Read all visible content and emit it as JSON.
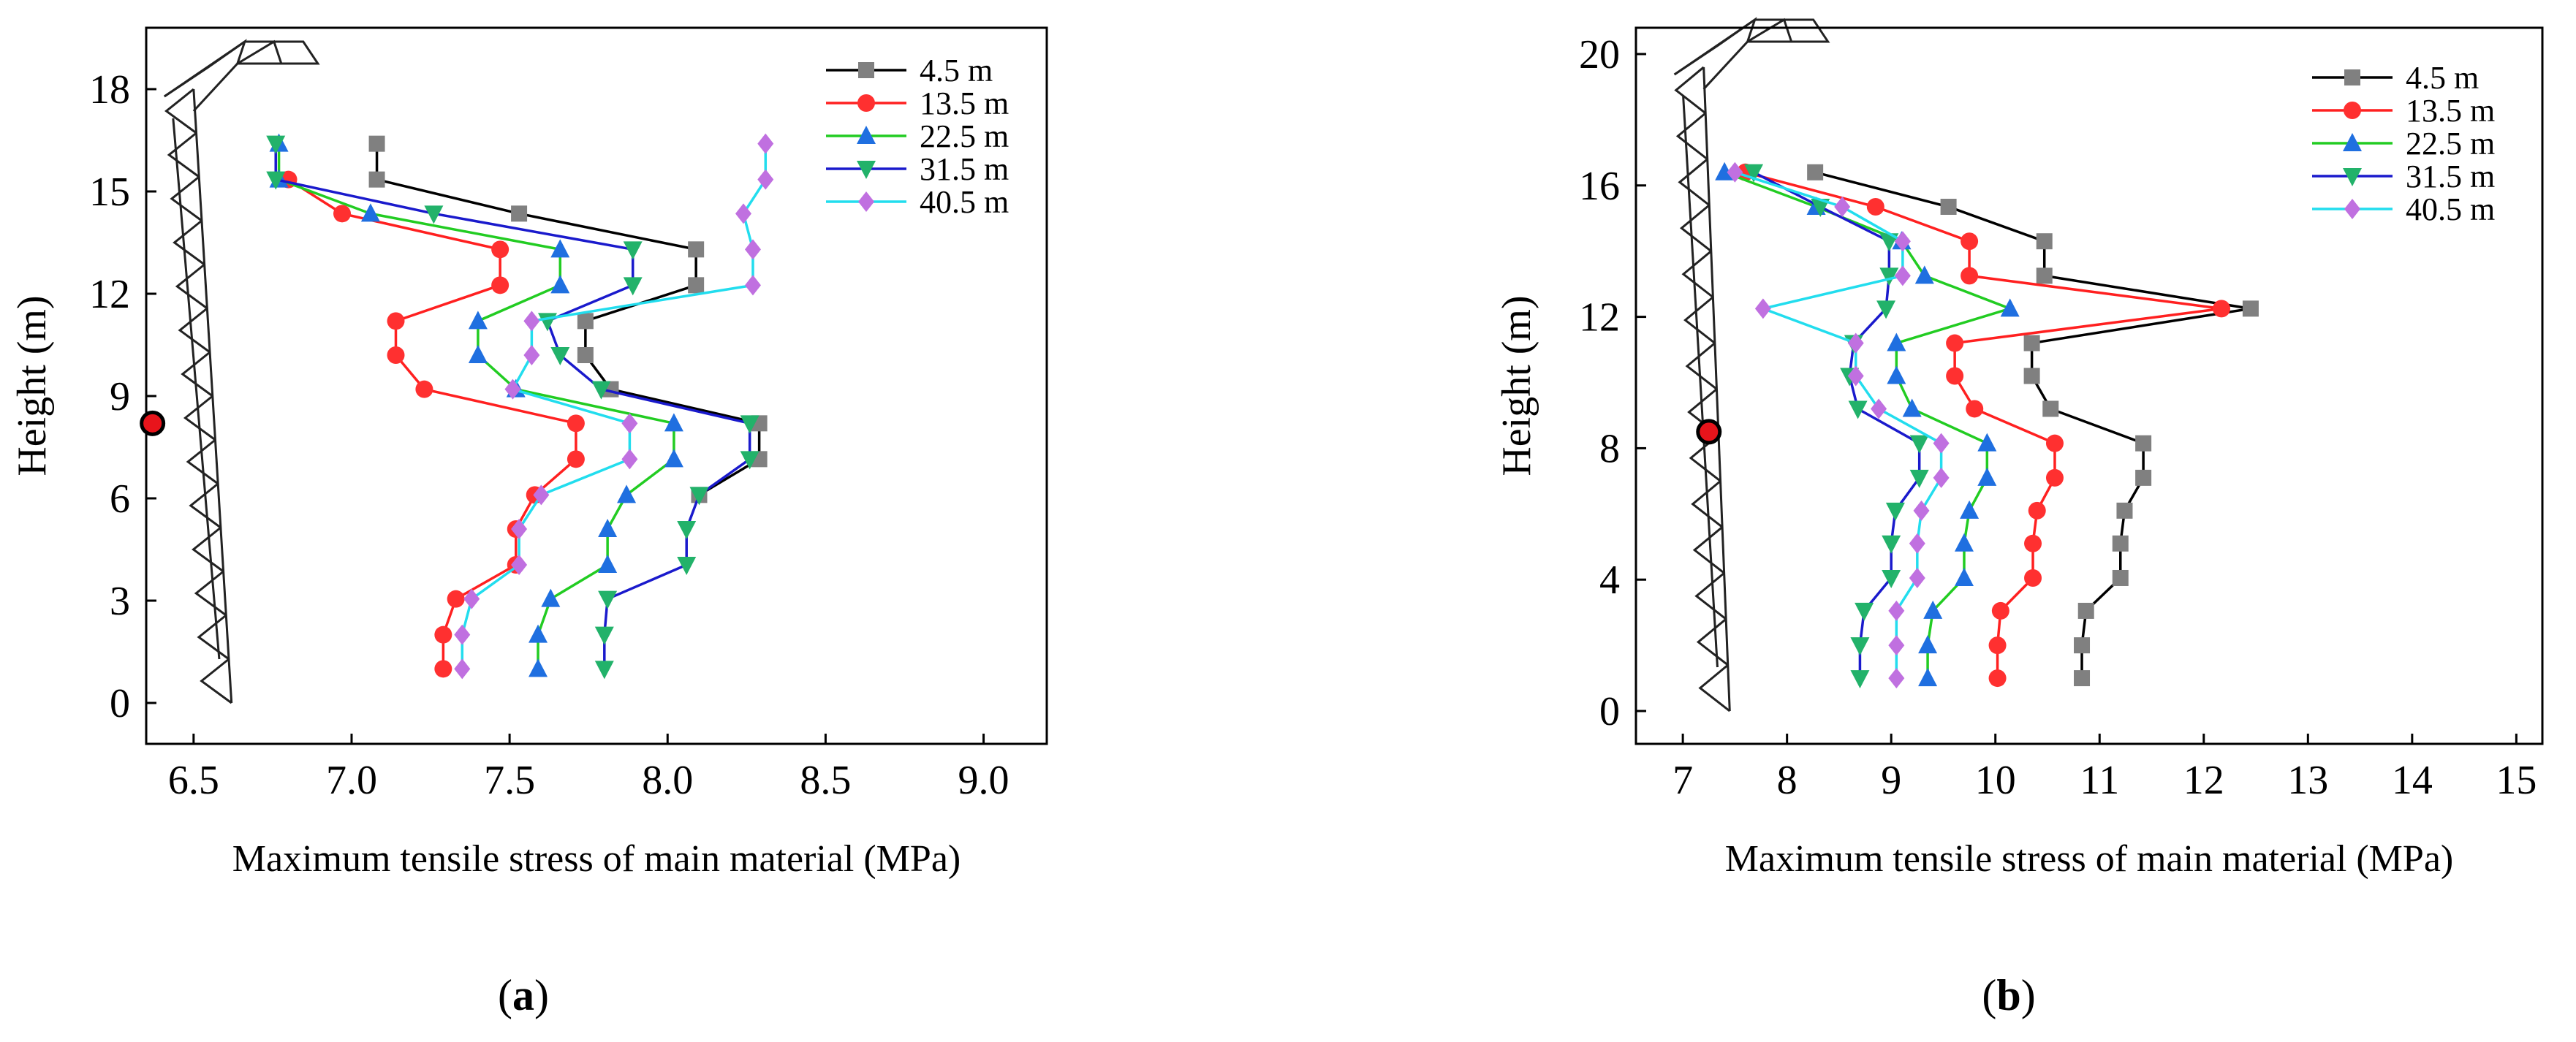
{
  "chart_data": [
    {
      "panel_label": "(a)",
      "type": "line",
      "xlabel": "Maximum tensile stress of main material (MPa)",
      "ylabel": "Height (m)",
      "xlim": [
        6.35,
        9.2
      ],
      "ylim": [
        -1.2,
        19.8
      ],
      "xticks": [
        "6.5",
        "7.0",
        "7.5",
        "8.0",
        "8.5",
        "9.0"
      ],
      "yticks": [
        "0",
        "3",
        "6",
        "9",
        "12",
        "15",
        "18"
      ],
      "tower": {
        "x_base": 6.62,
        "x_top": 6.5,
        "height": 18.0
      },
      "marker_point": {
        "x": 6.37,
        "y": 8.2
      },
      "series": [
        {
          "name": "4.5 m",
          "color": "#000000",
          "marker": "square",
          "marker_color": "#808080",
          "points": [
            [
              7.08,
              16.4
            ],
            [
              7.08,
              15.35
            ],
            [
              7.53,
              14.35
            ],
            [
              8.09,
              13.3
            ],
            [
              8.09,
              12.25
            ],
            [
              7.74,
              11.2
            ],
            [
              7.74,
              10.2
            ],
            [
              7.82,
              9.2
            ],
            [
              8.29,
              8.2
            ],
            [
              8.29,
              7.15
            ],
            [
              8.1,
              6.1
            ]
          ]
        },
        {
          "name": "13.5 m",
          "color": "#ff2020",
          "marker": "circle",
          "marker_color": "#ff3030",
          "points": [
            [
              6.8,
              15.35
            ],
            [
              6.97,
              14.35
            ],
            [
              7.47,
              13.3
            ],
            [
              7.47,
              12.25
            ],
            [
              7.14,
              11.2
            ],
            [
              7.14,
              10.2
            ],
            [
              7.23,
              9.2
            ],
            [
              7.71,
              8.2
            ],
            [
              7.71,
              7.15
            ],
            [
              7.58,
              6.1
            ],
            [
              7.52,
              5.1
            ],
            [
              7.52,
              4.05
            ],
            [
              7.33,
              3.05
            ],
            [
              7.29,
              2.0
            ],
            [
              7.29,
              1.0
            ]
          ]
        },
        {
          "name": "22.5 m",
          "color": "#22cc22",
          "marker": "triangle-up",
          "marker_color": "#1f6fe0",
          "points": [
            [
              6.77,
              16.4
            ],
            [
              6.77,
              15.35
            ],
            [
              7.06,
              14.35
            ],
            [
              7.66,
              13.3
            ],
            [
              7.66,
              12.25
            ],
            [
              7.4,
              11.2
            ],
            [
              7.4,
              10.2
            ],
            [
              7.52,
              9.2
            ],
            [
              8.02,
              8.2
            ],
            [
              8.02,
              7.15
            ],
            [
              7.87,
              6.1
            ],
            [
              7.81,
              5.1
            ],
            [
              7.81,
              4.05
            ],
            [
              7.63,
              3.05
            ],
            [
              7.59,
              2.0
            ],
            [
              7.59,
              1.0
            ]
          ]
        },
        {
          "name": "31.5 m",
          "color": "#1a1acc",
          "marker": "triangle-down",
          "marker_color": "#22b26a",
          "points": [
            [
              6.76,
              16.4
            ],
            [
              6.76,
              15.35
            ],
            [
              7.26,
              14.35
            ],
            [
              7.89,
              13.3
            ],
            [
              7.89,
              12.25
            ],
            [
              7.62,
              11.2
            ],
            [
              7.66,
              10.2
            ],
            [
              7.79,
              9.2
            ],
            [
              8.26,
              8.2
            ],
            [
              8.26,
              7.15
            ],
            [
              8.1,
              6.1
            ],
            [
              8.06,
              5.1
            ],
            [
              8.06,
              4.05
            ],
            [
              7.81,
              3.05
            ],
            [
              7.8,
              2.0
            ],
            [
              7.8,
              1.0
            ]
          ]
        },
        {
          "name": "40.5 m",
          "color": "#22ddee",
          "marker": "diamond",
          "marker_color": "#c070e0",
          "points": [
            [
              8.31,
              16.4
            ],
            [
              8.31,
              15.35
            ],
            [
              8.24,
              14.35
            ],
            [
              8.27,
              13.3
            ],
            [
              8.27,
              12.25
            ],
            [
              7.57,
              11.2
            ],
            [
              7.57,
              10.2
            ],
            [
              7.51,
              9.2
            ],
            [
              7.88,
              8.2
            ],
            [
              7.88,
              7.15
            ],
            [
              7.6,
              6.1
            ],
            [
              7.53,
              5.1
            ],
            [
              7.53,
              4.05
            ],
            [
              7.38,
              3.05
            ],
            [
              7.35,
              2.0
            ],
            [
              7.35,
              1.0
            ]
          ]
        }
      ]
    },
    {
      "panel_label": "(b)",
      "type": "line",
      "xlabel": "Maximum tensile stress of main material (MPa)",
      "ylabel": "Height (m)",
      "xlim": [
        6.55,
        15.25
      ],
      "ylim": [
        -1.0,
        20.8
      ],
      "xticks": [
        "7",
        "8",
        "9",
        "10",
        "11",
        "12",
        "13",
        "14",
        "15"
      ],
      "yticks": [
        "0",
        "4",
        "8",
        "12",
        "16",
        "20"
      ],
      "tower": {
        "x_base": 7.45,
        "x_top": 7.2,
        "height": 19.6
      },
      "marker_point": {
        "x": 7.25,
        "y": 8.5
      },
      "series": [
        {
          "name": "4.5 m",
          "color": "#000000",
          "marker": "square",
          "marker_color": "#808080",
          "points": [
            [
              8.27,
              16.4
            ],
            [
              9.55,
              15.35
            ],
            [
              10.47,
              14.3
            ],
            [
              10.47,
              13.25
            ],
            [
              12.45,
              12.25
            ],
            [
              10.35,
              11.2
            ],
            [
              10.35,
              10.2
            ],
            [
              10.53,
              9.2
            ],
            [
              11.42,
              8.15
            ],
            [
              11.42,
              7.1
            ],
            [
              11.24,
              6.1
            ],
            [
              11.2,
              5.1
            ],
            [
              11.2,
              4.05
            ],
            [
              10.87,
              3.05
            ],
            [
              10.83,
              2.0
            ],
            [
              10.83,
              1.0
            ]
          ]
        },
        {
          "name": "13.5 m",
          "color": "#ff2020",
          "marker": "circle",
          "marker_color": "#ff3030",
          "points": [
            [
              7.6,
              16.4
            ],
            [
              8.85,
              15.35
            ],
            [
              9.75,
              14.3
            ],
            [
              9.75,
              13.25
            ],
            [
              12.17,
              12.25
            ],
            [
              9.61,
              11.2
            ],
            [
              9.61,
              10.2
            ],
            [
              9.8,
              9.2
            ],
            [
              10.57,
              8.15
            ],
            [
              10.57,
              7.1
            ],
            [
              10.4,
              6.1
            ],
            [
              10.36,
              5.1
            ],
            [
              10.36,
              4.05
            ],
            [
              10.05,
              3.05
            ],
            [
              10.02,
              2.0
            ],
            [
              10.02,
              1.0
            ]
          ]
        },
        {
          "name": "22.5 m",
          "color": "#22cc22",
          "marker": "triangle-up",
          "marker_color": "#1f6fe0",
          "points": [
            [
              7.4,
              16.4
            ],
            [
              8.28,
              15.35
            ],
            [
              9.1,
              14.3
            ],
            [
              9.32,
              13.25
            ],
            [
              10.14,
              12.25
            ],
            [
              9.05,
              11.2
            ],
            [
              9.05,
              10.2
            ],
            [
              9.2,
              9.2
            ],
            [
              9.92,
              8.15
            ],
            [
              9.92,
              7.1
            ],
            [
              9.75,
              6.1
            ],
            [
              9.7,
              5.1
            ],
            [
              9.7,
              4.05
            ],
            [
              9.4,
              3.05
            ],
            [
              9.35,
              2.0
            ],
            [
              9.35,
              1.0
            ]
          ]
        },
        {
          "name": "31.5 m",
          "color": "#1a1acc",
          "marker": "triangle-down",
          "marker_color": "#22b26a",
          "points": [
            [
              7.68,
              16.4
            ],
            [
              8.32,
              15.35
            ],
            [
              8.98,
              14.3
            ],
            [
              8.98,
              13.25
            ],
            [
              8.95,
              12.25
            ],
            [
              8.64,
              11.2
            ],
            [
              8.6,
              10.2
            ],
            [
              8.68,
              9.2
            ],
            [
              9.27,
              8.15
            ],
            [
              9.27,
              7.1
            ],
            [
              9.04,
              6.1
            ],
            [
              9.0,
              5.1
            ],
            [
              9.0,
              4.05
            ],
            [
              8.74,
              3.05
            ],
            [
              8.7,
              2.0
            ],
            [
              8.7,
              1.0
            ]
          ]
        },
        {
          "name": "40.5 m",
          "color": "#22ddee",
          "marker": "diamond",
          "marker_color": "#c070e0",
          "points": [
            [
              7.5,
              16.4
            ],
            [
              8.53,
              15.35
            ],
            [
              9.11,
              14.3
            ],
            [
              9.11,
              13.25
            ],
            [
              7.77,
              12.25
            ],
            [
              8.66,
              11.2
            ],
            [
              8.66,
              10.2
            ],
            [
              8.88,
              9.2
            ],
            [
              9.48,
              8.15
            ],
            [
              9.48,
              7.1
            ],
            [
              9.29,
              6.1
            ],
            [
              9.25,
              5.1
            ],
            [
              9.25,
              4.05
            ],
            [
              9.05,
              3.05
            ],
            [
              9.05,
              2.0
            ],
            [
              9.05,
              1.0
            ]
          ]
        }
      ]
    }
  ]
}
